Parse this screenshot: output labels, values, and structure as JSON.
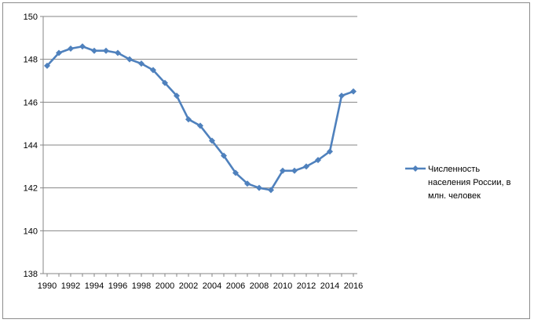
{
  "chart_data": {
    "type": "line",
    "title": "",
    "xlabel": "",
    "ylabel": "",
    "x": [
      1990,
      1991,
      1992,
      1993,
      1994,
      1995,
      1996,
      1997,
      1998,
      1999,
      2000,
      2001,
      2002,
      2003,
      2004,
      2005,
      2006,
      2007,
      2008,
      2009,
      2010,
      2011,
      2012,
      2013,
      2014,
      2015,
      2016
    ],
    "x_tick_labels": [
      "1990",
      "1992",
      "1994",
      "1996",
      "1998",
      "2000",
      "2002",
      "2004",
      "2006",
      "2008",
      "2010",
      "2012",
      "2014",
      "2016"
    ],
    "ylim": [
      138,
      150
    ],
    "y_tick_labels": [
      "138",
      "140",
      "142",
      "144",
      "146",
      "148",
      "150"
    ],
    "grid": true,
    "legend_position": "right",
    "series": [
      {
        "name": "Численность населения России, в млн. человек",
        "legend_lines": [
          "Численность",
          "населения России, в",
          "млн. человек"
        ],
        "color": "#4f81bd",
        "marker": "diamond",
        "values": [
          147.7,
          148.3,
          148.5,
          148.6,
          148.4,
          148.4,
          148.3,
          148.0,
          147.8,
          147.5,
          146.9,
          146.3,
          145.2,
          144.9,
          144.2,
          143.5,
          142.7,
          142.2,
          142.0,
          141.9,
          142.8,
          142.8,
          143.0,
          143.3,
          143.7,
          146.3,
          146.5
        ]
      }
    ]
  }
}
